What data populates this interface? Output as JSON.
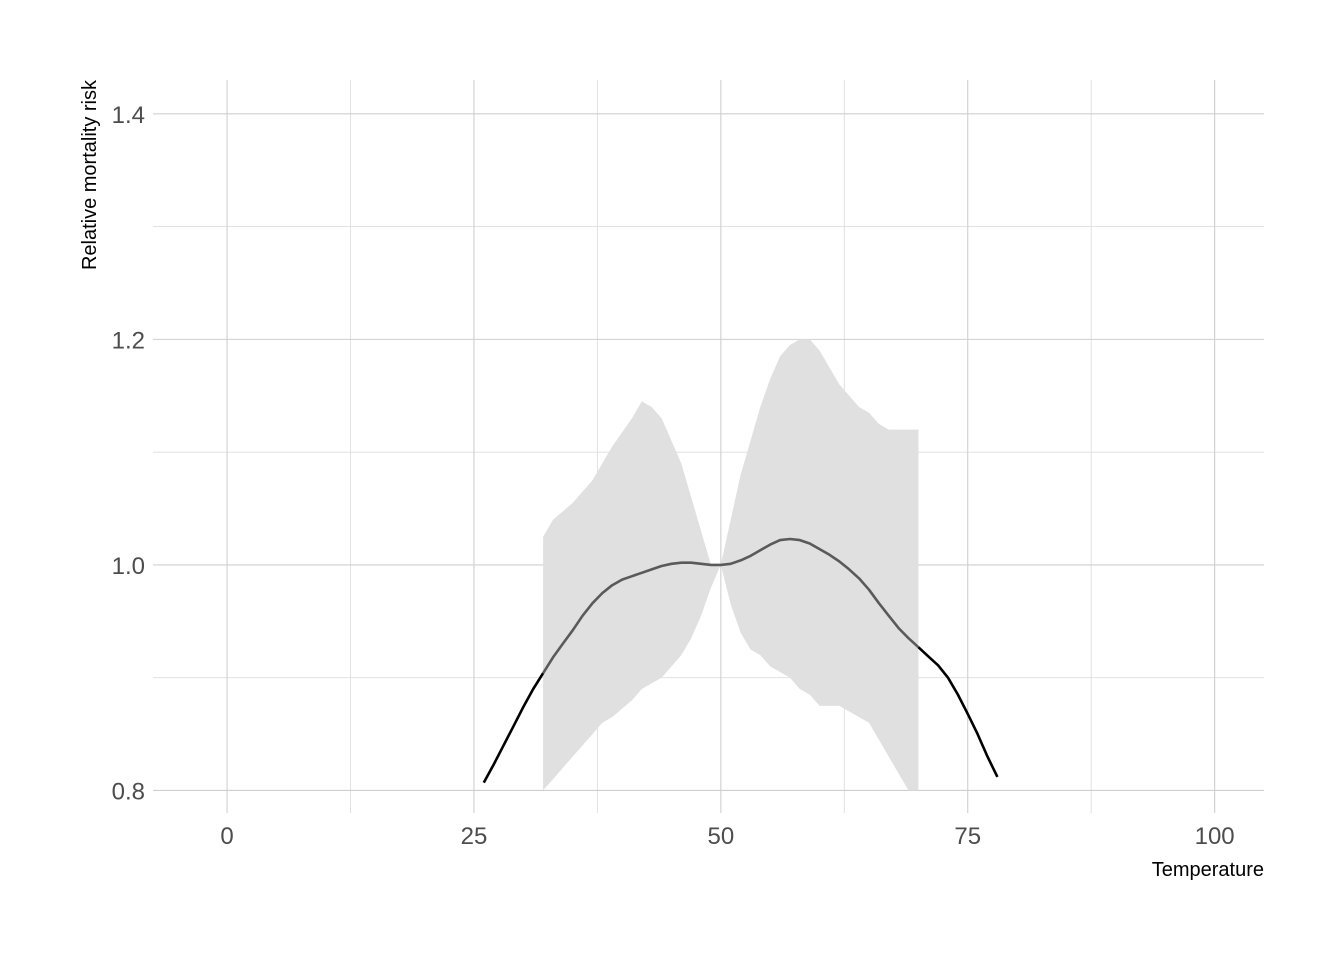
{
  "chart_data": {
    "type": "line",
    "title": "",
    "xlabel": "Temperature",
    "ylabel": "Relative mortality risk",
    "xlim": [
      -7.5,
      105
    ],
    "ylim": [
      0.78,
      1.43
    ],
    "x_ticks": [
      0,
      25,
      50,
      75,
      100
    ],
    "x_tick_labels": [
      "0",
      "25",
      "50",
      "75",
      "100"
    ],
    "y_ticks": [
      0.8,
      1.0,
      1.2,
      1.4
    ],
    "y_tick_labels": [
      "0.8",
      "1.0",
      "1.2",
      "1.4"
    ],
    "grid": true,
    "legend": "none",
    "colors": {
      "ribbon": "#e0e0e0",
      "line_outside": "#000000",
      "line_inside": "#5a5a5a",
      "grid": "#cfcfcf"
    },
    "confidence_band": {
      "x": [
        32,
        33,
        35,
        37,
        38,
        39,
        41,
        42,
        43,
        44,
        45,
        46,
        47,
        48,
        49,
        50,
        51,
        52,
        53,
        54,
        55,
        56,
        57,
        58,
        59,
        60,
        61,
        62,
        63,
        64,
        65,
        66,
        67,
        68,
        69,
        70
      ],
      "lower": [
        0.8,
        0.81,
        0.83,
        0.85,
        0.86,
        0.865,
        0.88,
        0.89,
        0.895,
        0.9,
        0.91,
        0.92,
        0.935,
        0.955,
        0.98,
        1.0,
        0.965,
        0.94,
        0.925,
        0.92,
        0.91,
        0.905,
        0.9,
        0.89,
        0.885,
        0.875,
        0.875,
        0.875,
        0.87,
        0.865,
        0.86,
        0.845,
        0.83,
        0.815,
        0.8,
        0.8
      ],
      "upper": [
        1.025,
        1.04,
        1.055,
        1.075,
        1.09,
        1.105,
        1.13,
        1.145,
        1.14,
        1.13,
        1.11,
        1.09,
        1.06,
        1.03,
        1.0,
        1.0,
        1.04,
        1.08,
        1.11,
        1.14,
        1.165,
        1.185,
        1.195,
        1.2,
        1.2,
        1.19,
        1.175,
        1.16,
        1.15,
        1.14,
        1.135,
        1.125,
        1.12,
        1.12,
        1.12,
        1.12
      ]
    },
    "series": [
      {
        "role": "fitted",
        "x": [
          26,
          27,
          28,
          29,
          30,
          31,
          32,
          33,
          34,
          35,
          36,
          37,
          38,
          39,
          40,
          41,
          42,
          43,
          44,
          45,
          46,
          47,
          48,
          49,
          50,
          51,
          52,
          53,
          54,
          55,
          56,
          57,
          58,
          59,
          60,
          61,
          62,
          63,
          64,
          65,
          66,
          67,
          68,
          69,
          70,
          71,
          72,
          73,
          74,
          75,
          76,
          77,
          78
        ],
        "y": [
          0.807,
          0.823,
          0.84,
          0.857,
          0.874,
          0.89,
          0.904,
          0.918,
          0.93,
          0.942,
          0.955,
          0.966,
          0.975,
          0.982,
          0.987,
          0.99,
          0.993,
          0.996,
          0.999,
          1.001,
          1.002,
          1.002,
          1.001,
          1.0,
          1.0,
          1.001,
          1.004,
          1.008,
          1.013,
          1.018,
          1.022,
          1.023,
          1.022,
          1.019,
          1.014,
          1.009,
          1.003,
          0.996,
          0.988,
          0.978,
          0.966,
          0.955,
          0.944,
          0.935,
          0.927,
          0.919,
          0.911,
          0.9,
          0.885,
          0.868,
          0.85,
          0.83,
          0.812
        ]
      }
    ]
  }
}
